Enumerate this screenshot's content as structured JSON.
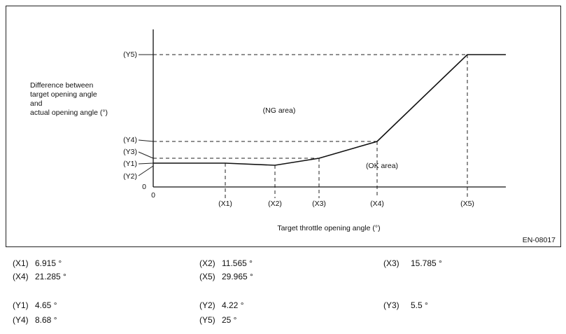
{
  "figure": {
    "y_axis_label": [
      "Difference between",
      "target opening angle",
      "and",
      "actual opening angle (°)"
    ],
    "y_ticks": [
      "(Y5)",
      "(Y4)",
      "(Y3)",
      "(Y1)",
      "(Y2)",
      "0"
    ],
    "x_ticks": [
      "0",
      "(X1)",
      "(X2)",
      "(X3)",
      "(X4)",
      "(X5)"
    ],
    "regions": [
      "(NG area)",
      "(OK area)"
    ],
    "x_axis_label": "Target throttle opening angle (°)",
    "figure_id": "EN-08017"
  },
  "values": {
    "rows": [
      [
        {
          "label": "(X1)",
          "value": "6.915 °"
        },
        {
          "label": "(X2)",
          "value": "11.565 °"
        },
        {
          "label": "(X3)",
          "value": "15.785 °"
        }
      ],
      [
        {
          "label": "(X4)",
          "value": "21.285 °"
        },
        {
          "label": "(X5)",
          "value": "29.965 °"
        }
      ],
      [
        {
          "label": "(Y1)",
          "value": "4.65 °"
        },
        {
          "label": "(Y2)",
          "value": "4.22 °"
        },
        {
          "label": "(Y3)",
          "value": "5.5 °"
        }
      ],
      [
        {
          "label": "(Y4)",
          "value": "8.68 °"
        },
        {
          "label": "(Y5)",
          "value": "25 °"
        }
      ]
    ]
  }
}
